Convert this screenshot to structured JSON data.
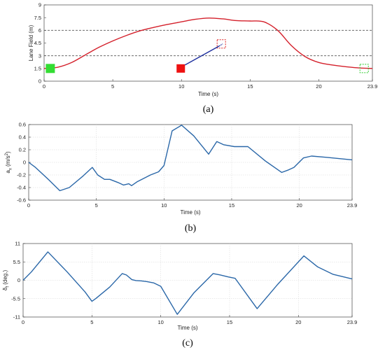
{
  "colors": {
    "series_red": "#d4202b",
    "series_blue": "#2a67a8",
    "ego_start": "#33dd33",
    "ego_end": "#33cc33",
    "obstacle": "#ee1111",
    "arrow": "#1e2f9e",
    "target_box": "#dd2222"
  },
  "chart_data": [
    {
      "type": "line",
      "panel_label": "(a)",
      "xlabel": "Time (s)",
      "ylabel": "Lane Field (m)",
      "xlim": [
        0,
        23.9
      ],
      "ylim": [
        0,
        9
      ],
      "xticks": [
        0,
        5,
        10,
        15,
        20,
        23.9
      ],
      "xtick_labels": [
        "0",
        "5",
        "10",
        "15",
        "20",
        "23.9"
      ],
      "yticks": [
        0,
        1.5,
        3,
        4.5,
        6,
        7.5,
        9
      ],
      "ytick_labels": [
        "0",
        "1.5",
        "3",
        "4.5",
        "6",
        "7.5",
        "9"
      ],
      "grid": false,
      "reference_lines_y": [
        3,
        6
      ],
      "series": [
        {
          "color": "#d4202b",
          "x": [
            0,
            1,
            2,
            3,
            4,
            5,
            6,
            7,
            8,
            9,
            10,
            11,
            12,
            13,
            14,
            15,
            16,
            17,
            18,
            19,
            20,
            21,
            22,
            23,
            23.9
          ],
          "y": [
            1.5,
            1.65,
            2.2,
            3.1,
            4.0,
            4.75,
            5.4,
            5.95,
            6.35,
            6.7,
            7.0,
            7.3,
            7.45,
            7.35,
            7.15,
            7.1,
            7.0,
            6.0,
            4.2,
            2.9,
            2.2,
            1.9,
            1.7,
            1.55,
            1.5
          ]
        }
      ],
      "markers": {
        "ego_start": {
          "x": 0.3,
          "y": 1.5,
          "style": "filled-square"
        },
        "ego_end": {
          "x": 23.3,
          "y": 1.5,
          "style": "dashed-square"
        },
        "obstacle": {
          "x": 9.95,
          "y": 1.5,
          "style": "filled-square"
        },
        "obstacle_target": {
          "x": 12.8,
          "y": 4.4,
          "style": "dashed-square"
        }
      }
    },
    {
      "type": "line",
      "panel_label": "(b)",
      "xlabel": "Time (s)",
      "ylabel_main": "a",
      "ylabel_sub": "x",
      "ylabel_unit_pre": " (m/s",
      "ylabel_unit_sup": "2",
      "ylabel_unit_post": ")",
      "xlim": [
        0,
        23.9
      ],
      "ylim": [
        -0.6,
        0.6
      ],
      "xticks": [
        0,
        5,
        10,
        15,
        20,
        23.9
      ],
      "xtick_labels": [
        "0",
        "5",
        "10",
        "15",
        "20",
        "23.9"
      ],
      "yticks": [
        -0.6,
        -0.4,
        -0.2,
        0,
        0.2,
        0.4,
        0.6
      ],
      "ytick_labels": [
        "-0.6",
        "-0.4",
        "-0.2",
        "0",
        "0.2",
        "0.4",
        "0.6"
      ],
      "grid": true,
      "series": [
        {
          "color": "#2a67a8",
          "x": [
            0,
            0.5,
            1.5,
            2.3,
            3.0,
            4.0,
            4.7,
            5.1,
            5.6,
            6.0,
            6.6,
            7.0,
            7.4,
            7.6,
            8.0,
            9.0,
            9.6,
            10.0,
            10.6,
            11.3,
            12.2,
            13.3,
            13.9,
            14.4,
            15.2,
            16.2,
            17.5,
            18.7,
            19.2,
            19.6,
            20.3,
            20.9,
            22.0,
            23.9
          ],
          "y": [
            0.0,
            -0.08,
            -0.28,
            -0.45,
            -0.4,
            -0.22,
            -0.08,
            -0.2,
            -0.27,
            -0.27,
            -0.32,
            -0.36,
            -0.34,
            -0.37,
            -0.31,
            -0.2,
            -0.15,
            -0.05,
            0.5,
            0.59,
            0.42,
            0.13,
            0.33,
            0.28,
            0.25,
            0.25,
            0.02,
            -0.16,
            -0.12,
            -0.08,
            0.07,
            0.1,
            0.08,
            0.04
          ]
        }
      ]
    },
    {
      "type": "line",
      "panel_label": "(c)",
      "xlabel": "Time (s)",
      "ylabel_main": "δ",
      "ylabel_sub": "f",
      "ylabel_unit_pre": " (deg.)",
      "ylabel_unit_sup": "",
      "ylabel_unit_post": "",
      "xlim": [
        0,
        23.9
      ],
      "ylim": [
        -11,
        11
      ],
      "xticks": [
        0,
        5,
        10,
        15,
        20,
        23.9
      ],
      "xtick_labels": [
        "0",
        "5",
        "10",
        "15",
        "20",
        "23.9"
      ],
      "yticks": [
        -11,
        -5.5,
        0,
        5.5,
        11
      ],
      "ytick_labels": [
        "-11",
        "-5.5",
        "0",
        "5.5",
        "11"
      ],
      "grid": true,
      "series": [
        {
          "color": "#2a67a8",
          "x": [
            0,
            0.6,
            1.8,
            3.2,
            4.5,
            5.0,
            5.3,
            6.3,
            7.2,
            7.5,
            7.9,
            8.2,
            8.6,
            9.0,
            9.5,
            10.0,
            11.2,
            12.4,
            13.8,
            14.3,
            14.9,
            15.4,
            17.0,
            18.5,
            20.4,
            21.4,
            22.5,
            23.9
          ],
          "y": [
            0,
            2.5,
            8.5,
            2.5,
            -3.5,
            -6.3,
            -5.4,
            -2.0,
            2.0,
            1.6,
            0.2,
            -0.1,
            -0.2,
            -0.4,
            -0.8,
            -1.8,
            -10.2,
            -3.8,
            2.0,
            1.6,
            1.0,
            0.6,
            -8.5,
            -1.2,
            7.3,
            4.0,
            1.8,
            0.4
          ]
        }
      ]
    }
  ]
}
